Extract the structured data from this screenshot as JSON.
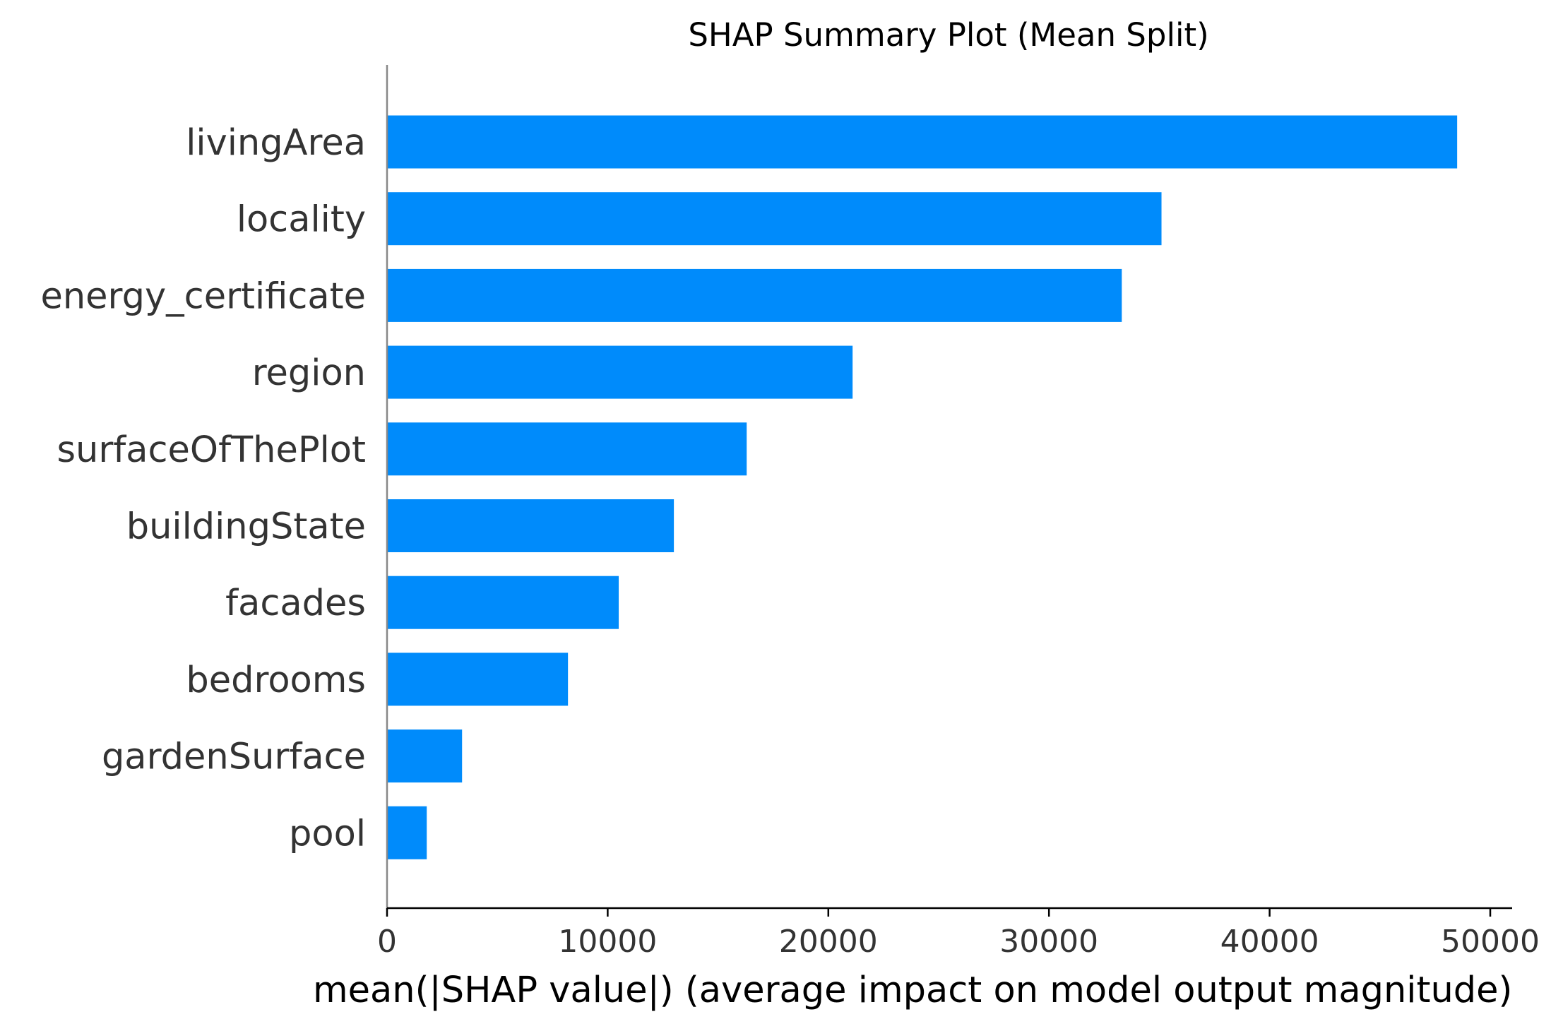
{
  "chart_data": {
    "type": "bar",
    "orientation": "horizontal",
    "title": "SHAP Summary Plot (Mean Split)",
    "xlabel": "mean(|SHAP value|) (average impact on model output magnitude)",
    "ylabel": "",
    "categories": [
      "livingArea",
      "locality",
      "energy_certificate",
      "region",
      "surfaceOfThePlot",
      "buildingState",
      "facades",
      "bedrooms",
      "gardenSurface",
      "pool"
    ],
    "values": [
      48500,
      35100,
      33300,
      21100,
      16300,
      13000,
      10500,
      8200,
      3400,
      1800
    ],
    "xlim": [
      0,
      51000
    ],
    "xticks": [
      "0",
      "10000",
      "20000",
      "30000",
      "40000",
      "50000"
    ],
    "xtick_values": [
      0,
      10000,
      20000,
      30000,
      40000,
      50000
    ],
    "bar_color": "#008bfb",
    "grid": false
  }
}
